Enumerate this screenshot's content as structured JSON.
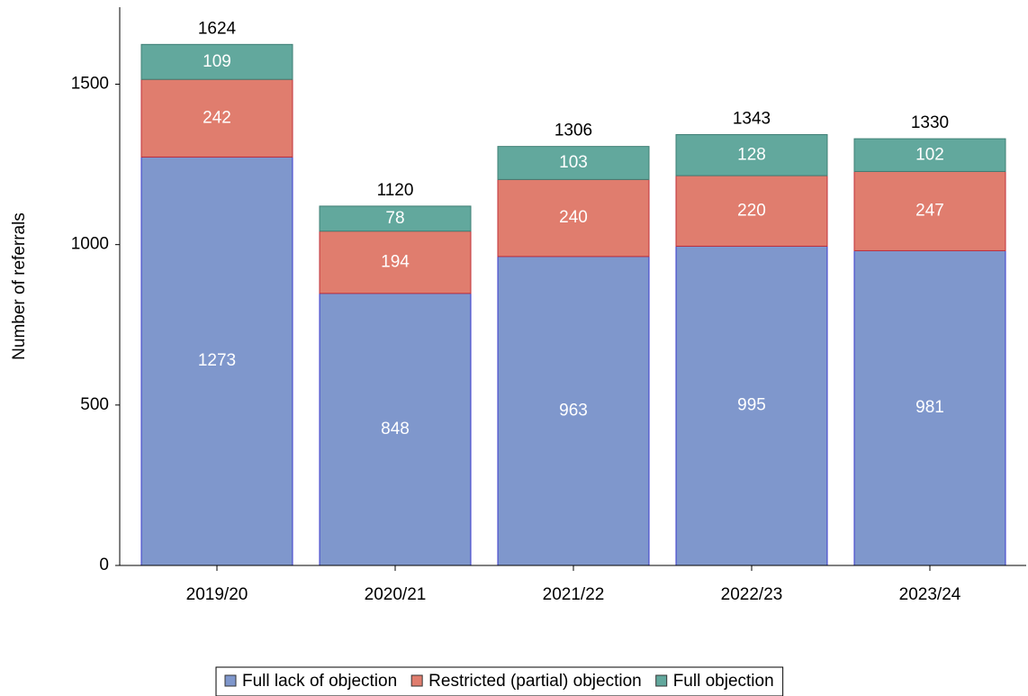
{
  "chart_data": {
    "type": "stacked_bar",
    "ylabel": "Number of referrals",
    "categories": [
      "2019/20",
      "2020/21",
      "2021/22",
      "2022/23",
      "2023/24"
    ],
    "series": [
      {
        "name": "Full lack of objection",
        "color": "#7f97cc",
        "stroke": "#3a3acc",
        "values": [
          1273,
          848,
          963,
          995,
          981
        ]
      },
      {
        "name": "Restricted (partial) objection",
        "color": "#e07d6e",
        "stroke": "#c0303a",
        "values": [
          242,
          194,
          240,
          220,
          247
        ]
      },
      {
        "name": "Full objection",
        "color": "#62a89d",
        "stroke": "#3f7f75",
        "values": [
          109,
          78,
          103,
          128,
          102
        ]
      }
    ],
    "totals": [
      1624,
      1120,
      1306,
      1343,
      1330
    ],
    "ylim": [
      0,
      1740
    ],
    "yticks": [
      0,
      500,
      1000,
      1500
    ],
    "legend": "bottom"
  }
}
